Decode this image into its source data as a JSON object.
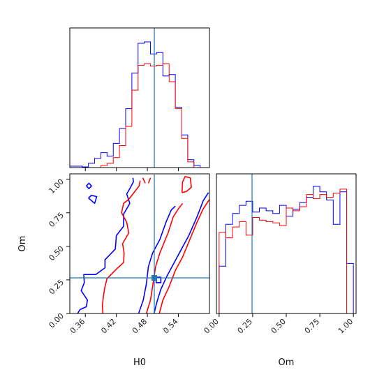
{
  "chart_data": {
    "type": "corner",
    "parameters": [
      "H0",
      "Om"
    ],
    "truth": {
      "H0": 0.5,
      "Om": 0.26
    },
    "colors": {
      "series_a": "#0000ff",
      "series_b": "#ff0000",
      "truth": "#1f77b4"
    },
    "panels": [
      {
        "id": "hist-H0",
        "type": "histogram",
        "xlim": [
          0.33,
          0.6
        ],
        "bin_edges": [
          0.33,
          0.342,
          0.354,
          0.366,
          0.378,
          0.39,
          0.402,
          0.414,
          0.426,
          0.438,
          0.45,
          0.462,
          0.474,
          0.486,
          0.498,
          0.51,
          0.522,
          0.534,
          0.546,
          0.558,
          0.57,
          0.582,
          0.594
        ],
        "series": [
          {
            "color": "blue",
            "counts": [
              2,
              2,
              1,
              6,
              13,
              21,
              16,
              34,
              55,
              83,
              133,
              175,
              177,
              160,
              162,
              129,
              131,
              85,
              46,
              11,
              3,
              0
            ]
          },
          {
            "color": "red",
            "counts": [
              0,
              0,
              0,
              0,
              0,
              3,
              6,
              14,
              31,
              58,
              109,
              144,
              146,
              143,
              144,
              146,
              121,
              83,
              41,
              8,
              0,
              0
            ]
          }
        ]
      },
      {
        "id": "contour-H0-Om",
        "type": "contour",
        "xlim": [
          0.33,
          0.6
        ],
        "ylim": [
          0.0,
          1.04
        ],
        "xticks": [
          "0.36",
          "0.42",
          "0.48",
          "0.54"
        ],
        "xtick_values": [
          0.36,
          0.42,
          0.48,
          0.54
        ],
        "yticks": [
          "0.00",
          "0.25",
          "0.50",
          "0.75",
          "1.00"
        ],
        "ytick_values": [
          0.0,
          0.25,
          0.5,
          0.75,
          1.0
        ],
        "xlabel": "H0",
        "ylabel": "Om",
        "series": [
          {
            "color": "blue",
            "paths": [
              [
                [
                  0.345,
                  0.0
                ],
                [
                  0.35,
                  0.03
                ],
                [
                  0.362,
                  0.05
                ],
                [
                  0.364,
                  0.1
                ],
                [
                  0.352,
                  0.17
                ],
                [
                  0.358,
                  0.23
                ],
                [
                  0.357,
                  0.29
                ],
                [
                  0.38,
                  0.29
                ],
                [
                  0.398,
                  0.34
                ],
                [
                  0.398,
                  0.4
                ],
                [
                  0.418,
                  0.48
                ],
                [
                  0.42,
                  0.58
                ],
                [
                  0.434,
                  0.65
                ],
                [
                  0.434,
                  0.74
                ],
                [
                  0.446,
                  0.82
                ],
                [
                  0.44,
                  0.89
                ],
                [
                  0.446,
                  0.93
                ],
                [
                  0.453,
                  0.98
                ],
                [
                  0.452,
                  1.01
                ]
              ],
              [
                [
                  0.366,
                  0.86
                ],
                [
                  0.378,
                  0.82
                ],
                [
                  0.382,
                  0.87
                ],
                [
                  0.372,
                  0.88
                ],
                [
                  0.366,
                  0.86
                ]
              ],
              [
                [
                  0.362,
                  0.95
                ],
                [
                  0.367,
                  0.97
                ],
                [
                  0.372,
                  0.95
                ],
                [
                  0.367,
                  0.93
                ],
                [
                  0.362,
                  0.95
                ]
              ],
              [
                [
                  0.463,
                  0.0
                ],
                [
                  0.472,
                  0.1
                ],
                [
                  0.478,
                  0.22
                ],
                [
                  0.482,
                  0.35
                ],
                [
                  0.49,
                  0.45
                ],
                [
                  0.504,
                  0.55
                ],
                [
                  0.516,
                  0.68
                ],
                [
                  0.526,
                  0.77
                ],
                [
                  0.534,
                  0.8
                ]
              ],
              [
                [
                  0.493,
                  0.0
                ],
                [
                  0.498,
                  0.08
                ],
                [
                  0.506,
                  0.18
                ],
                [
                  0.518,
                  0.28
                ],
                [
                  0.532,
                  0.38
                ],
                [
                  0.546,
                  0.48
                ],
                [
                  0.56,
                  0.58
                ],
                [
                  0.576,
                  0.72
                ],
                [
                  0.588,
                  0.84
                ],
                [
                  0.598,
                  0.9
                ]
              ],
              [
                [
                  0.497,
                  0.27
                ],
                [
                  0.506,
                  0.27
                ],
                [
                  0.506,
                  0.23
                ],
                [
                  0.497,
                  0.23
                ],
                [
                  0.497,
                  0.27
                ]
              ]
            ]
          },
          {
            "color": "red",
            "paths": [
              [
                [
                  0.394,
                  0.0
                ],
                [
                  0.393,
                  0.06
                ],
                [
                  0.395,
                  0.13
                ],
                [
                  0.398,
                  0.2
                ],
                [
                  0.402,
                  0.26
                ],
                [
                  0.42,
                  0.33
                ],
                [
                  0.434,
                  0.38
                ],
                [
                  0.435,
                  0.45
                ],
                [
                  0.432,
                  0.52
                ],
                [
                  0.444,
                  0.6
                ],
                [
                  0.44,
                  0.68
                ],
                [
                  0.43,
                  0.75
                ],
                [
                  0.434,
                  0.82
                ],
                [
                  0.444,
                  0.85
                ],
                [
                  0.45,
                  0.88
                ],
                [
                  0.456,
                  0.91
                ],
                [
                  0.464,
                  0.95
                ],
                [
                  0.466,
                  0.99
                ]
              ],
              [
                [
                  0.476,
                  0.97
                ],
                [
                  0.471,
                  1.01
                ]
              ],
              [
                [
                  0.486,
                  1.01
                ],
                [
                  0.482,
                  0.97
                ]
              ],
              [
                [
                  0.547,
                  0.9
                ],
                [
                  0.548,
                  0.98
                ],
                [
                  0.553,
                  1.02
                ],
                [
                  0.563,
                  1.01
                ],
                [
                  0.565,
                  0.94
                ],
                [
                  0.556,
                  0.91
                ],
                [
                  0.547,
                  0.9
                ]
              ],
              [
                [
                  0.478,
                  0.0
                ],
                [
                  0.486,
                  0.1
                ],
                [
                  0.49,
                  0.2
                ],
                [
                  0.496,
                  0.35
                ],
                [
                  0.504,
                  0.45
                ],
                [
                  0.52,
                  0.6
                ],
                [
                  0.53,
                  0.72
                ],
                [
                  0.54,
                  0.78
                ],
                [
                  0.548,
                  0.82
                ]
              ],
              [
                [
                  0.503,
                  0.0
                ],
                [
                  0.51,
                  0.1
                ],
                [
                  0.522,
                  0.2
                ],
                [
                  0.534,
                  0.32
                ],
                [
                  0.548,
                  0.42
                ],
                [
                  0.562,
                  0.55
                ],
                [
                  0.576,
                  0.68
                ],
                [
                  0.588,
                  0.78
                ],
                [
                  0.6,
                  0.85
                ]
              ]
            ]
          }
        ]
      },
      {
        "id": "hist-Om",
        "type": "histogram",
        "xlim": [
          -0.02,
          1.02
        ],
        "xticks": [
          "0.00",
          "0.25",
          "0.50",
          "0.75",
          "1.00"
        ],
        "xtick_values": [
          0.0,
          0.25,
          0.5,
          0.75,
          1.0
        ],
        "xlabel": "Om",
        "bin_edges": [
          0.0,
          0.05,
          0.1,
          0.15,
          0.2,
          0.25,
          0.3,
          0.35,
          0.4,
          0.45,
          0.5,
          0.55,
          0.6,
          0.65,
          0.7,
          0.75,
          0.8,
          0.85,
          0.9,
          0.95,
          1.0
        ],
        "series": [
          {
            "color": "blue",
            "counts": [
              0.35,
              0.66,
              0.74,
              0.8,
              0.83,
              0.75,
              0.78,
              0.76,
              0.74,
              0.8,
              0.72,
              0.77,
              0.82,
              0.86,
              0.94,
              0.9,
              0.84,
              0.66,
              0.9,
              0.37
            ]
          },
          {
            "color": "red",
            "counts": [
              0.6,
              0.56,
              0.64,
              0.68,
              0.58,
              0.71,
              0.69,
              0.68,
              0.67,
              0.65,
              0.78,
              0.76,
              0.79,
              0.88,
              0.85,
              0.88,
              0.86,
              0.89,
              0.92,
              0.0
            ]
          }
        ]
      }
    ]
  }
}
